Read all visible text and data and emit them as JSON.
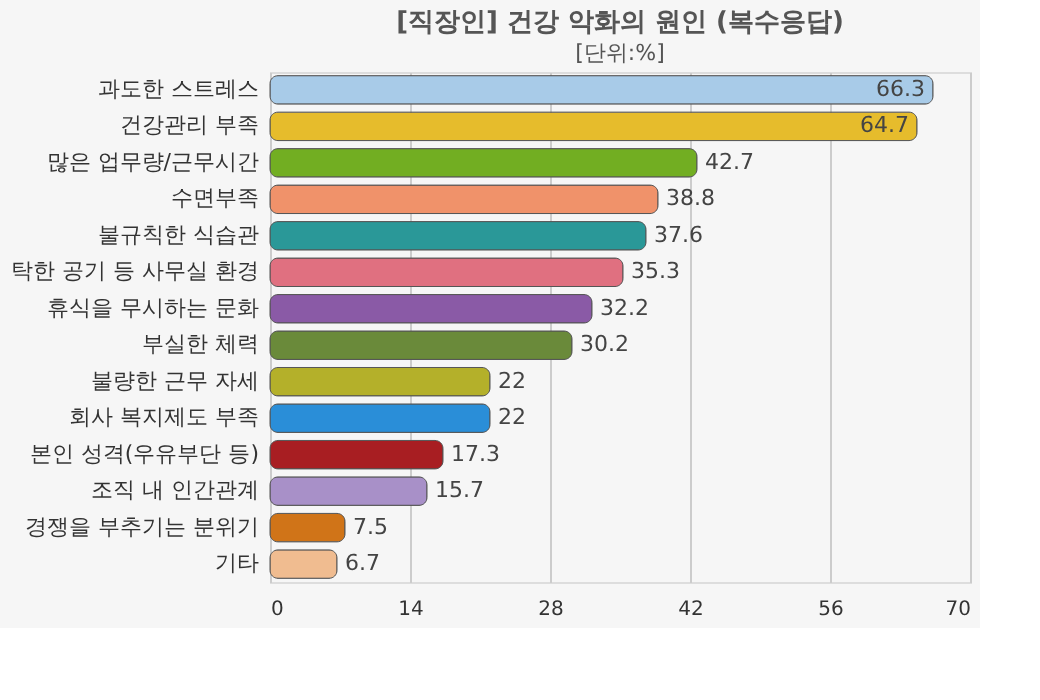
{
  "chart_data": {
    "type": "bar",
    "orientation": "horizontal",
    "title": "[직장인] 건강 악화의 원인 (복수응답)",
    "subtitle": "[단위:%]",
    "categories": [
      "과도한 스트레스",
      "건강관리 부족",
      "많은 업무량/근무시간",
      "수면부족",
      "불규칙한 식습관",
      "탁한 공기 등 사무실 환경",
      "휴식을 무시하는 문화",
      "부실한 체력",
      "불량한 근무 자세",
      "회사 복지제도 부족",
      "본인 성격(우유부단 등)",
      "조직 내 인간관계",
      "경쟁을 부추기는 분위기",
      "기타"
    ],
    "values": [
      66.3,
      64.7,
      42.7,
      38.8,
      37.6,
      35.3,
      32.2,
      30.2,
      22,
      22,
      17.3,
      15.7,
      7.5,
      6.7
    ],
    "colors": [
      "#a8cbe8",
      "#e6bc2c",
      "#72ae22",
      "#f0926a",
      "#2a9898",
      "#e07080",
      "#8a5aa6",
      "#6a8a3a",
      "#b4b02a",
      "#2a8ed8",
      "#a81e22",
      "#a890c8",
      "#d07418",
      "#f0bc90"
    ],
    "xlim": [
      0,
      70
    ],
    "xticks": [
      0,
      14,
      28,
      42,
      56,
      70
    ],
    "grid": "x",
    "data_labels": true
  }
}
